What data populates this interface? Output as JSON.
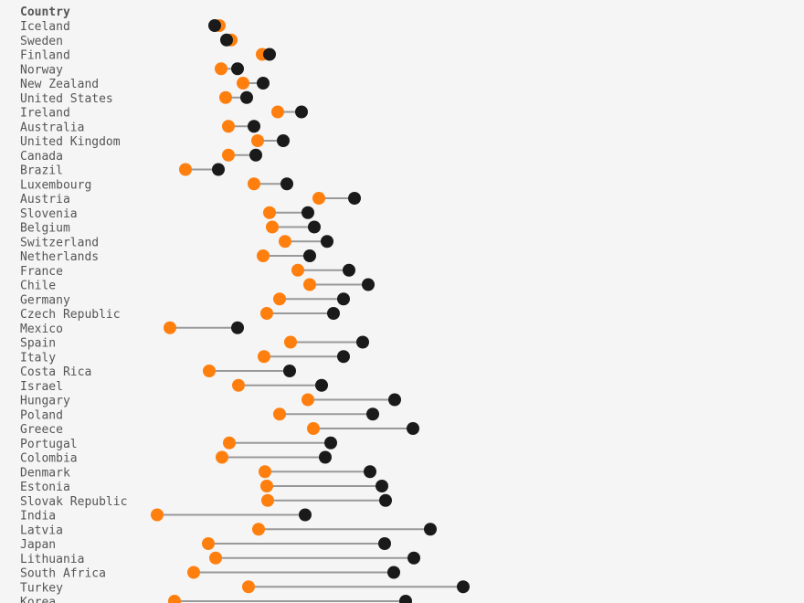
{
  "chart_data": {
    "type": "dumbbell",
    "column_header": "Country",
    "colors": {
      "start": "#ff7f0e",
      "end": "#1a1a1a",
      "connector": "#999999"
    },
    "grid": false,
    "categories": [
      "Iceland",
      "Sweden",
      "Finland",
      "Norway",
      "New Zealand",
      "United States",
      "Ireland",
      "Australia",
      "United Kingdom",
      "Canada",
      "Brazil",
      "Luxembourg",
      "Austria",
      "Slovenia",
      "Belgium",
      "Switzerland",
      "Netherlands",
      "France",
      "Chile",
      "Germany",
      "Czech Republic",
      "Mexico",
      "Spain",
      "Italy",
      "Costa Rica",
      "Israel",
      "Hungary",
      "Poland",
      "Greece",
      "Portugal",
      "Colombia",
      "Denmark",
      "Estonia",
      "Slovak Republic",
      "India",
      "Latvia",
      "Japan",
      "Lithuania",
      "South Africa",
      "Turkey",
      "Korea"
    ],
    "series": [
      {
        "values": [
          80,
          93,
          127,
          82,
          106,
          87,
          144,
          90,
          122,
          90,
          43,
          118,
          189,
          135,
          138,
          152,
          128,
          166,
          179,
          146,
          132,
          26,
          158,
          129,
          69,
          101,
          177,
          146,
          183,
          91,
          83,
          130,
          132,
          133,
          12,
          123,
          68,
          76,
          52,
          112,
          31
        ]
      },
      {
        "values": [
          75,
          88,
          135,
          100,
          128,
          110,
          170,
          118,
          150,
          120,
          79,
          154,
          228,
          177,
          184,
          198,
          179,
          222,
          243,
          216,
          205,
          100,
          237,
          216,
          157,
          192,
          272,
          248,
          292,
          202,
          196,
          245,
          258,
          262,
          174,
          311,
          261,
          293,
          271,
          347,
          284
        ]
      }
    ]
  }
}
